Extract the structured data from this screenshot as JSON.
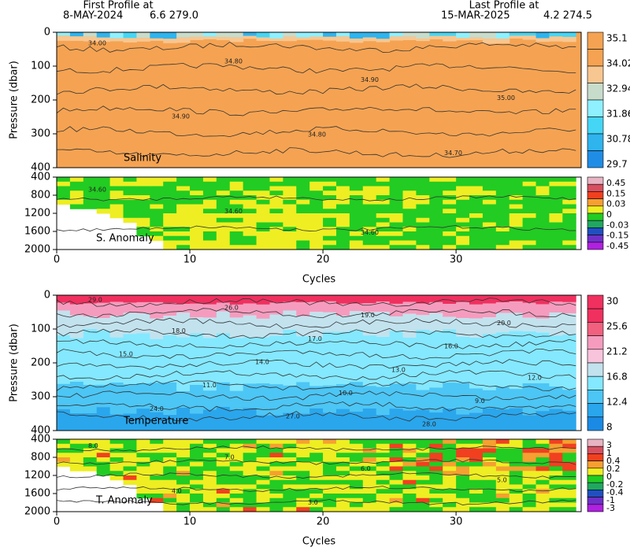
{
  "header": {
    "first_label": "First Profile at",
    "first_date": "8-MAY-2024",
    "first_pos": "6.6 279.0",
    "last_label": "Last Profile at",
    "last_date": "15-MAR-2025",
    "last_pos": "4.2 274.5"
  },
  "xlim": [
    0,
    39.4
  ],
  "xticks": [
    0,
    10,
    20,
    30
  ],
  "xlabel": "Cycles",
  "panels": [
    {
      "label": "Salinity",
      "ylabel": "Pressure (dbar)",
      "ylim": [
        0,
        400
      ],
      "yticks": [
        0,
        100,
        200,
        300,
        400
      ],
      "colorbar": {
        "labels": [
          "35.1",
          "34.02",
          "32.94",
          "31.86",
          "30.78",
          "29.7"
        ],
        "colors": [
          "#f5a352",
          "#f5a352",
          "#f8c690",
          "#c8dccb",
          "#8ff0ff",
          "#45d6f5",
          "#2fb4ee",
          "#1f8de6"
        ]
      },
      "contours": [
        "34.00",
        "34.80",
        "34.90",
        "35.00",
        "34.90",
        "34.80",
        "34.70"
      ]
    },
    {
      "label": "S. Anomaly",
      "ylim": [
        400,
        2000
      ],
      "yticks": [
        400,
        800,
        1200,
        1600,
        2000
      ],
      "colorbar": {
        "labels": [
          "0.45",
          "0.15",
          "0.03",
          "0",
          "-0.03",
          "-0.15",
          "-0.45"
        ],
        "colors": [
          "#e8b4c4",
          "#d85060",
          "#f04020",
          "#f5a030",
          "#eeee22",
          "#22cc22",
          "#20a860",
          "#2050c0",
          "#7030c8",
          "#b020e0"
        ]
      },
      "contours": [
        "34.60",
        "34.60",
        "34.60"
      ]
    },
    {
      "label": "Temperature",
      "ylabel": "Pressure (dbar)",
      "ylim": [
        0,
        400
      ],
      "yticks": [
        0,
        100,
        200,
        300,
        400
      ],
      "colorbar": {
        "labels": [
          "30",
          "25.6",
          "21.2",
          "16.8",
          "12.4",
          "8"
        ],
        "colors": [
          "#f0305f",
          "#f0305f",
          "#f2607f",
          "#f59cbe",
          "#f8c4dc",
          "#c2e2ee",
          "#84e8ff",
          "#4cc6f5",
          "#2aa6ec",
          "#1a8ae4"
        ]
      },
      "contours": [
        "29.0",
        "26.0",
        "19.0",
        "20.0",
        "18.0",
        "17.0",
        "16.0",
        "15.0",
        "14.0",
        "13.0",
        "12.0",
        "11.0",
        "10.0",
        "9.0",
        "24.0",
        "27.0",
        "28.0"
      ]
    },
    {
      "label": "T. Anomaly",
      "ylim": [
        400,
        2000
      ],
      "yticks": [
        400,
        800,
        1200,
        1600,
        2000
      ],
      "colorbar": {
        "labels": [
          "3",
          "1",
          "0.4",
          "0.2",
          "0",
          "-0.2",
          "-0.4",
          "-1",
          "-3"
        ],
        "colors": [
          "#e8b4c4",
          "#d85060",
          "#f04020",
          "#f5a030",
          "#eeee22",
          "#22cc22",
          "#20a860",
          "#2050c0",
          "#7030c8",
          "#b020e0"
        ]
      },
      "contours": [
        "8.0",
        "7.0",
        "6.0",
        "5.0",
        "4.0",
        "3.0"
      ]
    }
  ]
}
